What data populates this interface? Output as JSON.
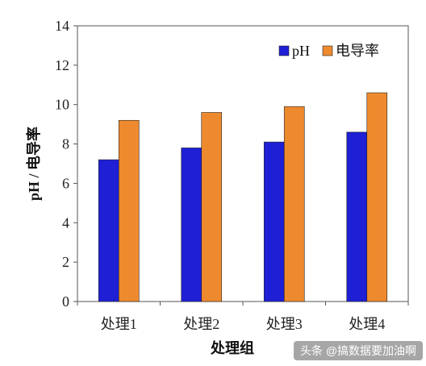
{
  "chart_data": {
    "type": "bar",
    "categories": [
      "处理1",
      "处理2",
      "处理3",
      "处理4"
    ],
    "series": [
      {
        "name": "pH",
        "values": [
          7.2,
          7.8,
          8.1,
          8.6
        ],
        "color": "#1f1fd6"
      },
      {
        "name": "电导率",
        "values": [
          9.2,
          9.6,
          9.9,
          10.6
        ],
        "color": "#ee8a2e"
      }
    ],
    "xlabel": "处理组",
    "ylabel": "pH / 电导率",
    "ylim": [
      0,
      14
    ],
    "yticks": [
      0,
      2,
      4,
      6,
      8,
      10,
      12,
      14
    ],
    "grid": false,
    "legend_position": "top-right",
    "plot_border": true
  },
  "watermark": {
    "text": "头条 @搞数据要加油啊"
  }
}
